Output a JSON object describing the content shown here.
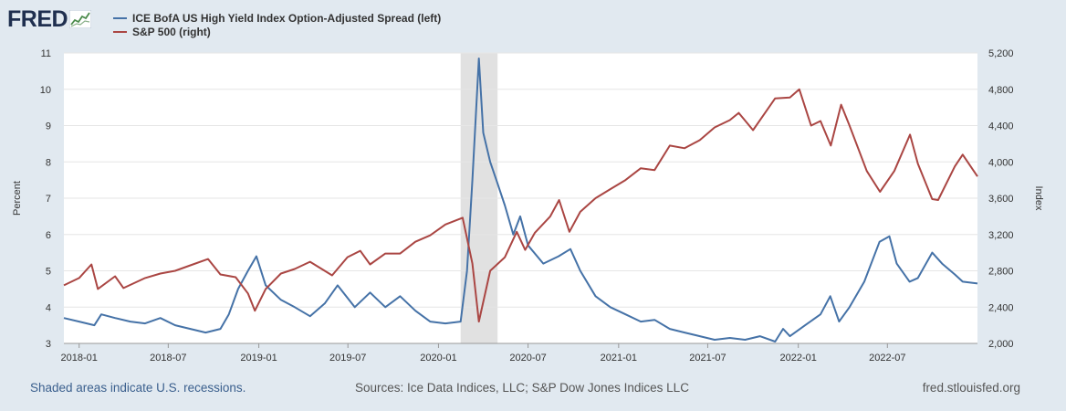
{
  "logo": {
    "text": "FRED"
  },
  "legend": [
    {
      "label": "ICE BofA US High Yield Index Option-Adjusted Spread (left)",
      "color": "#4572a7"
    },
    {
      "label": "S&P 500 (right)",
      "color": "#aa4643"
    }
  ],
  "footer": {
    "recession_note": "Shaded areas indicate U.S. recessions.",
    "sources": "Sources: Ice Data Indices, LLC; S&P Dow Jones Indices LLC",
    "site": "fred.stlouisfed.org"
  },
  "chart_data": {
    "type": "line",
    "ylabel_left": "Percent",
    "ylabel_right": "Index",
    "ylim_left": [
      3,
      11
    ],
    "ylim_right": [
      2000,
      5200
    ],
    "yticks_left": [
      "3",
      "4",
      "5",
      "6",
      "7",
      "8",
      "9",
      "10",
      "11"
    ],
    "yticks_right": [
      "2,000",
      "2,400",
      "2,800",
      "3,200",
      "3,600",
      "4,000",
      "4,400",
      "4,800",
      "5,200"
    ],
    "xlim": [
      "2017-12-01",
      "2022-12-31"
    ],
    "xticks": [
      {
        "label": "2018-01",
        "date": "2018-01-01"
      },
      {
        "label": "2018-07",
        "date": "2018-07-01"
      },
      {
        "label": "2019-01",
        "date": "2019-01-01"
      },
      {
        "label": "2019-07",
        "date": "2019-07-01"
      },
      {
        "label": "2020-01",
        "date": "2020-01-01"
      },
      {
        "label": "2020-07",
        "date": "2020-07-01"
      },
      {
        "label": "2021-01",
        "date": "2021-01-01"
      },
      {
        "label": "2021-07",
        "date": "2021-07-01"
      },
      {
        "label": "2022-01",
        "date": "2022-01-01"
      },
      {
        "label": "2022-07",
        "date": "2022-07-01"
      }
    ],
    "grid": true,
    "legend_position": "top-left",
    "recession": {
      "start": "2020-02-15",
      "end": "2020-04-30",
      "color": "#e1e1e1"
    },
    "series": [
      {
        "name": "ICE BofA US High Yield Index Option-Adjusted Spread (left)",
        "axis": "left",
        "color": "#4572a7",
        "x": [
          "2017-12-01",
          "2018-01-01",
          "2018-02-01",
          "2018-02-15",
          "2018-03-15",
          "2018-04-15",
          "2018-05-15",
          "2018-06-15",
          "2018-07-15",
          "2018-08-15",
          "2018-09-15",
          "2018-10-15",
          "2018-11-01",
          "2018-11-20",
          "2018-12-10",
          "2018-12-27",
          "2019-01-15",
          "2019-02-15",
          "2019-03-15",
          "2019-04-15",
          "2019-05-15",
          "2019-06-10",
          "2019-07-15",
          "2019-08-15",
          "2019-09-15",
          "2019-10-15",
          "2019-11-15",
          "2019-12-15",
          "2020-01-15",
          "2020-02-15",
          "2020-02-28",
          "2020-03-10",
          "2020-03-23",
          "2020-04-01",
          "2020-04-15",
          "2020-04-30",
          "2020-05-15",
          "2020-06-01",
          "2020-06-15",
          "2020-07-01",
          "2020-08-01",
          "2020-09-01",
          "2020-09-25",
          "2020-10-15",
          "2020-11-15",
          "2020-12-15",
          "2021-01-15",
          "2021-02-15",
          "2021-03-15",
          "2021-04-15",
          "2021-05-15",
          "2021-06-15",
          "2021-07-15",
          "2021-08-15",
          "2021-09-15",
          "2021-10-15",
          "2021-11-15",
          "2021-12-01",
          "2021-12-15",
          "2022-01-15",
          "2022-02-15",
          "2022-03-07",
          "2022-03-25",
          "2022-04-15",
          "2022-05-15",
          "2022-06-15",
          "2022-07-05",
          "2022-07-20",
          "2022-08-15",
          "2022-09-01",
          "2022-09-30",
          "2022-10-20",
          "2022-11-15",
          "2022-12-01",
          "2022-12-31"
        ],
        "y": [
          3.7,
          3.6,
          3.5,
          3.8,
          3.7,
          3.6,
          3.55,
          3.7,
          3.5,
          3.4,
          3.3,
          3.4,
          3.8,
          4.5,
          5.0,
          5.4,
          4.6,
          4.2,
          4.0,
          3.75,
          4.1,
          4.6,
          4.0,
          4.4,
          4.0,
          4.3,
          3.9,
          3.6,
          3.55,
          3.6,
          5.0,
          7.5,
          10.85,
          8.8,
          8.0,
          7.4,
          6.8,
          6.0,
          6.5,
          5.7,
          5.2,
          5.4,
          5.6,
          5.0,
          4.3,
          4.0,
          3.8,
          3.6,
          3.65,
          3.4,
          3.3,
          3.2,
          3.1,
          3.15,
          3.1,
          3.2,
          3.05,
          3.4,
          3.2,
          3.5,
          3.8,
          4.3,
          3.6,
          4.0,
          4.7,
          5.8,
          5.95,
          5.2,
          4.7,
          4.8,
          5.5,
          5.2,
          4.9,
          4.7,
          4.65
        ]
      },
      {
        "name": "S&P 500 (right)",
        "axis": "right",
        "color": "#aa4643",
        "x": [
          "2017-12-01",
          "2018-01-01",
          "2018-01-26",
          "2018-02-08",
          "2018-03-15",
          "2018-04-01",
          "2018-05-15",
          "2018-06-15",
          "2018-07-15",
          "2018-08-15",
          "2018-09-20",
          "2018-10-15",
          "2018-11-15",
          "2018-12-10",
          "2018-12-24",
          "2019-01-15",
          "2019-02-15",
          "2019-03-15",
          "2019-04-15",
          "2019-05-30",
          "2019-06-30",
          "2019-07-26",
          "2019-08-15",
          "2019-09-15",
          "2019-10-15",
          "2019-11-15",
          "2019-12-15",
          "2020-01-15",
          "2020-02-19",
          "2020-03-10",
          "2020-03-23",
          "2020-04-15",
          "2020-05-15",
          "2020-06-08",
          "2020-06-25",
          "2020-07-15",
          "2020-08-15",
          "2020-09-02",
          "2020-09-23",
          "2020-10-15",
          "2020-11-15",
          "2020-12-15",
          "2021-01-15",
          "2021-02-15",
          "2021-03-15",
          "2021-04-15",
          "2021-05-15",
          "2021-06-15",
          "2021-07-15",
          "2021-08-15",
          "2021-09-02",
          "2021-10-01",
          "2021-11-15",
          "2021-12-15",
          "2022-01-03",
          "2022-01-27",
          "2022-02-15",
          "2022-03-08",
          "2022-03-29",
          "2022-04-15",
          "2022-05-20",
          "2022-06-16",
          "2022-07-15",
          "2022-08-16",
          "2022-09-01",
          "2022-09-30",
          "2022-10-12",
          "2022-11-15",
          "2022-12-01",
          "2022-12-31"
        ],
        "y": [
          2640,
          2720,
          2870,
          2600,
          2740,
          2610,
          2720,
          2770,
          2800,
          2860,
          2930,
          2760,
          2730,
          2550,
          2360,
          2600,
          2770,
          2820,
          2900,
          2750,
          2950,
          3020,
          2870,
          2990,
          2990,
          3120,
          3190,
          3310,
          3385,
          2880,
          2240,
          2800,
          2950,
          3230,
          3030,
          3220,
          3400,
          3580,
          3230,
          3450,
          3600,
          3700,
          3800,
          3930,
          3910,
          4180,
          4150,
          4240,
          4380,
          4460,
          4540,
          4350,
          4700,
          4710,
          4800,
          4400,
          4450,
          4180,
          4630,
          4400,
          3900,
          3670,
          3900,
          4300,
          3980,
          3590,
          3580,
          3950,
          4080,
          3840
        ]
      }
    ]
  }
}
